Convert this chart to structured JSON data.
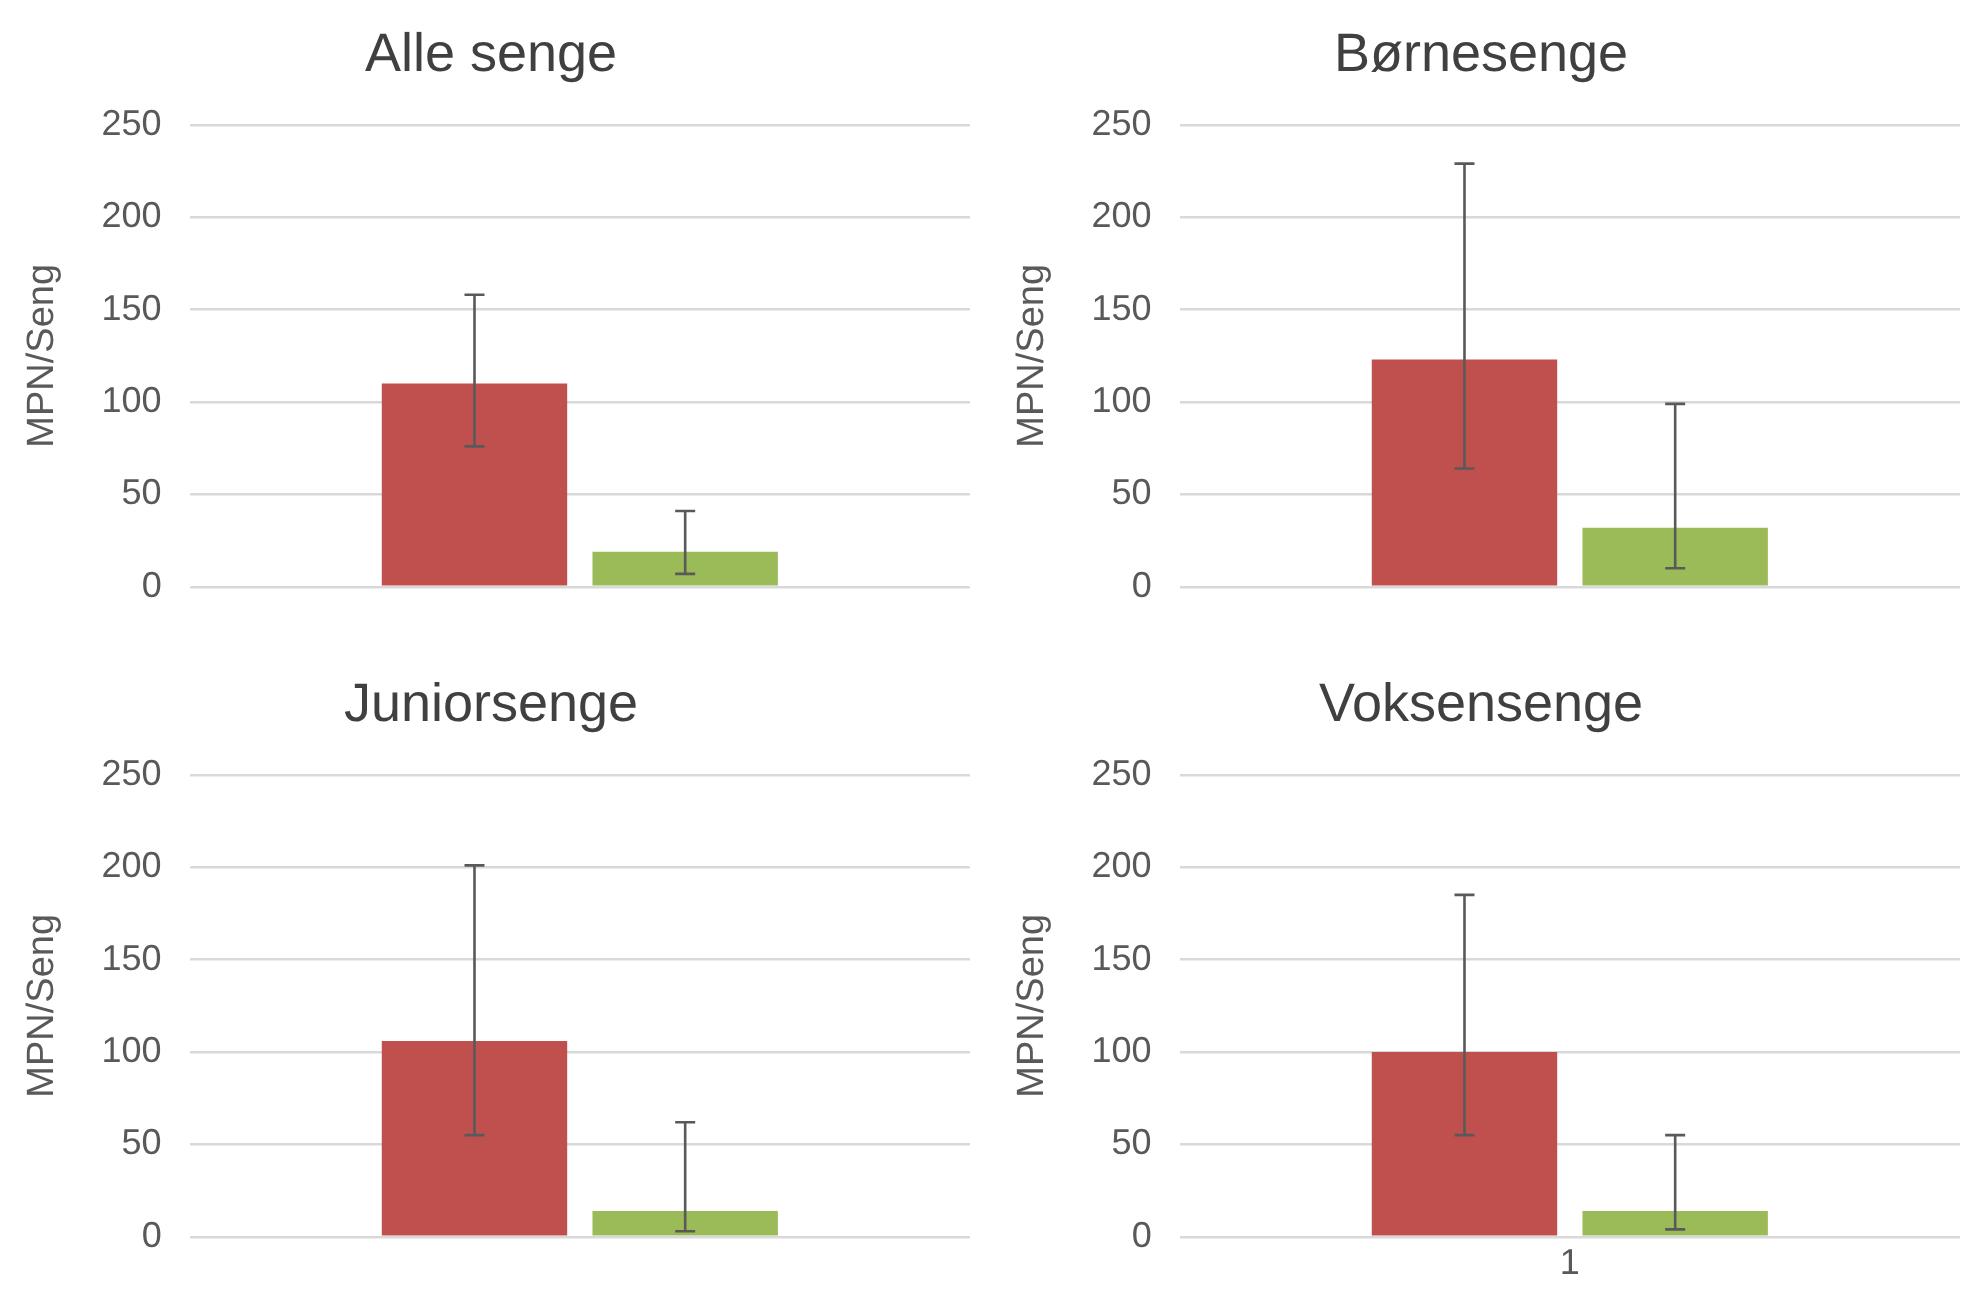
{
  "chart_data": [
    {
      "type": "bar",
      "title": "Alle senge",
      "ylabel": "MPN/Seng",
      "categories": [
        null
      ],
      "ylim": [
        0,
        250
      ],
      "yticks": [
        0,
        50,
        100,
        150,
        200,
        250
      ],
      "grid": "y",
      "legend": false,
      "series": [
        {
          "color": "#c0504d",
          "values": [
            110
          ],
          "errors": [
            [
              76,
              158
            ]
          ]
        },
        {
          "color": "#9bbb59",
          "values": [
            19
          ],
          "errors": [
            [
              7,
              41
            ]
          ]
        }
      ]
    },
    {
      "type": "bar",
      "title": "Børnesenge",
      "ylabel": "MPN/Seng",
      "categories": [
        null
      ],
      "ylim": [
        0,
        250
      ],
      "yticks": [
        0,
        50,
        100,
        150,
        200,
        250
      ],
      "grid": "y",
      "legend": false,
      "series": [
        {
          "color": "#c0504d",
          "values": [
            123
          ],
          "errors": [
            [
              64,
              229
            ]
          ]
        },
        {
          "color": "#9bbb59",
          "values": [
            32
          ],
          "errors": [
            [
              10,
              99
            ]
          ]
        }
      ]
    },
    {
      "type": "bar",
      "title": "Juniorsenge",
      "ylabel": "MPN/Seng",
      "categories": [
        null
      ],
      "ylim": [
        0,
        250
      ],
      "yticks": [
        0,
        50,
        100,
        150,
        200,
        250
      ],
      "grid": "y",
      "legend": false,
      "series": [
        {
          "color": "#c0504d",
          "values": [
            106
          ],
          "errors": [
            [
              55,
              201
            ]
          ]
        },
        {
          "color": "#9bbb59",
          "values": [
            14
          ],
          "errors": [
            [
              3,
              62
            ]
          ]
        }
      ]
    },
    {
      "type": "bar",
      "title": "Voksensenge",
      "ylabel": "MPN/Seng",
      "categories": [
        "1"
      ],
      "ylim": [
        0,
        250
      ],
      "yticks": [
        0,
        50,
        100,
        150,
        200,
        250
      ],
      "grid": "y",
      "legend": false,
      "series": [
        {
          "color": "#c0504d",
          "values": [
            100
          ],
          "errors": [
            [
              55,
              185
            ]
          ]
        },
        {
          "color": "#9bbb59",
          "values": [
            14
          ],
          "errors": [
            [
              4,
              55
            ]
          ]
        }
      ]
    }
  ]
}
